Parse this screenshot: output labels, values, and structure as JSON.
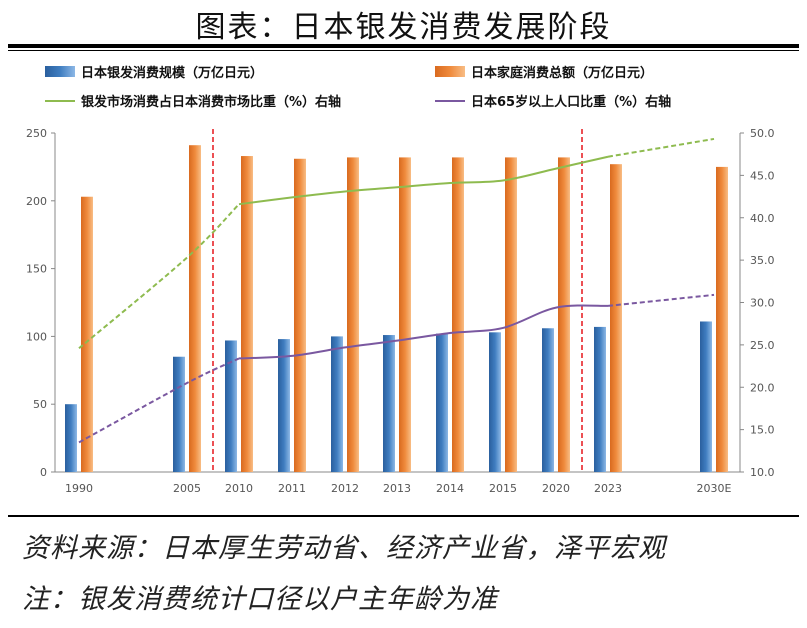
{
  "header": {
    "title": "图表：日本银发消费发展阶段"
  },
  "footer": {
    "source": "资料来源：日本厚生劳动省、经济产业省，泽平宏观",
    "note": "注：银发消费统计口径以户主年龄为准"
  },
  "colors": {
    "bar_blue": "#3f7dc0",
    "bar_orange": "#ef8a3c",
    "line_green": "#8ebb4f",
    "line_purple": "#7a58a0",
    "marker_red": "#e8252a"
  },
  "chart_data": {
    "type": "bar",
    "categories": [
      "1990",
      "2005",
      "2010",
      "2011",
      "2012",
      "2013",
      "2014",
      "2015",
      "2020",
      "2023",
      "2030E"
    ],
    "series": [
      {
        "name": "日本银发消费规模（万亿日元）",
        "type": "bar",
        "axis": "left",
        "values": [
          50,
          85,
          97,
          98,
          100,
          101,
          102,
          103,
          106,
          107,
          111
        ]
      },
      {
        "name": "日本家庭消费总额（万亿日元）",
        "type": "bar",
        "axis": "left",
        "values": [
          203,
          241,
          233,
          231,
          232,
          232,
          232,
          232,
          232,
          227,
          225
        ]
      },
      {
        "name": "银发市场消费占日本消费市场比重（%）右轴",
        "type": "line",
        "axis": "right",
        "values": [
          24.6,
          35.3,
          41.6,
          42.4,
          43.1,
          43.6,
          44.1,
          44.4,
          45.8,
          47.2,
          49.3
        ],
        "solid_categories": [
          "2010",
          "2011",
          "2012",
          "2013",
          "2014",
          "2015",
          "2020",
          "2023"
        ]
      },
      {
        "name": "日本65岁以上人口比重（%）右轴",
        "type": "line",
        "axis": "right",
        "values": [
          13.5,
          20.5,
          23.4,
          23.7,
          24.7,
          25.5,
          26.4,
          27.0,
          29.4,
          29.6,
          30.9
        ],
        "solid_categories": [
          "2010",
          "2011",
          "2012",
          "2013",
          "2014",
          "2015",
          "2020",
          "2023"
        ]
      }
    ],
    "y_left": {
      "ylim": [
        0,
        250
      ],
      "ticks": [
        "0",
        "50",
        "100",
        "150",
        "200",
        "250"
      ]
    },
    "y_right": {
      "ylim": [
        10,
        50
      ],
      "ticks": [
        "10.0",
        "15.0",
        "20.0",
        "25.0",
        "30.0",
        "35.0",
        "40.0",
        "45.0",
        "50.0"
      ]
    },
    "vertical_markers": [
      2007.5,
      2021.5
    ],
    "legend_position": "top",
    "grid": false
  }
}
